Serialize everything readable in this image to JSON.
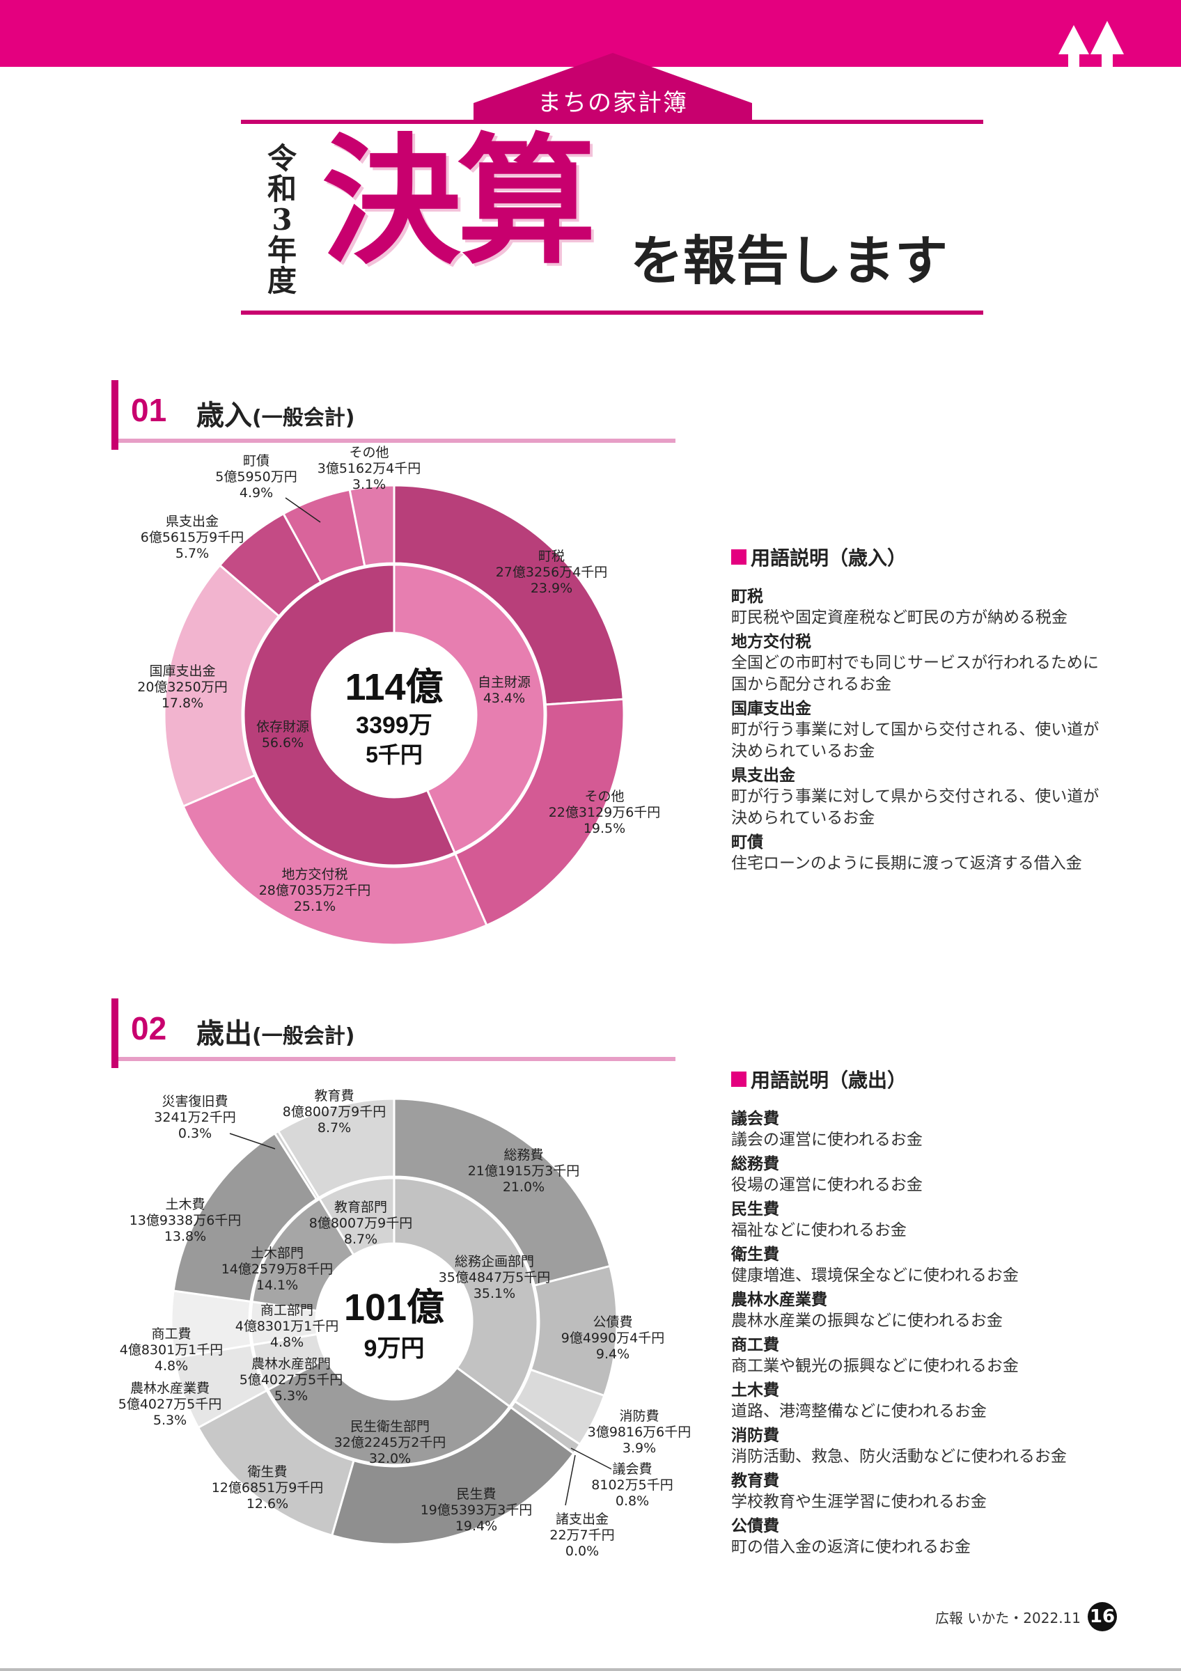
{
  "header": {
    "series_label": "まちの家計簿",
    "year": "令和3年度",
    "title_big": "決算",
    "title_sub": "を報告します"
  },
  "sections": [
    {
      "num": "01",
      "title": "歳入",
      "title_sub": "(一般会計)"
    },
    {
      "num": "02",
      "title": "歳出",
      "title_sub": "(一般会計)"
    }
  ],
  "colors": {
    "accent": "#e4007f",
    "title": "#c8006e"
  },
  "chart_data": [
    {
      "type": "pie",
      "variant": "donut",
      "center_total": [
        "114億",
        "3399万",
        "5千円"
      ],
      "inner_ring": [
        {
          "name": "自主財源",
          "percent": 43.4,
          "percent_label": "43.4%"
        },
        {
          "name": "依存財源",
          "percent": 56.6,
          "percent_label": "56.6%"
        }
      ],
      "outer_ring": [
        {
          "name": "町税",
          "amount": "27億3256万4千円",
          "percent": 23.9,
          "percent_label": "23.9%"
        },
        {
          "name": "その他",
          "amount": "22億3129万6千円",
          "percent": 19.5,
          "percent_label": "19.5%"
        },
        {
          "name": "地方交付税",
          "amount": "28億7035万2千円",
          "percent": 25.1,
          "percent_label": "25.1%"
        },
        {
          "name": "国庫支出金",
          "amount": "20億3250万円",
          "percent": 17.8,
          "percent_label": "17.8%"
        },
        {
          "name": "県支出金",
          "amount": "6億5615万9千円",
          "percent": 5.7,
          "percent_label": "5.7%"
        },
        {
          "name": "町債",
          "amount": "5億5950万円",
          "percent": 4.9,
          "percent_label": "4.9%"
        },
        {
          "name": "その他",
          "amount": "3億5162万4千円",
          "percent": 3.1,
          "percent_label": "3.1%"
        }
      ]
    },
    {
      "type": "pie",
      "variant": "donut",
      "center_total": [
        "101億",
        "9万円"
      ],
      "inner_ring": [
        {
          "name": "総務企画部門",
          "amount": "35億4847万5千円",
          "percent": 35.1,
          "percent_label": "35.1%"
        },
        {
          "name": "民生衛生部門",
          "amount": "32億2245万2千円",
          "percent": 32.0,
          "percent_label": "32.0%"
        },
        {
          "name": "農林水産部門",
          "amount": "5億4027万5千円",
          "percent": 5.3,
          "percent_label": "5.3%"
        },
        {
          "name": "商工部門",
          "amount": "4億8301万1千円",
          "percent": 4.8,
          "percent_label": "4.8%"
        },
        {
          "name": "土木部門",
          "amount": "14億2579万8千円",
          "percent": 14.1,
          "percent_label": "14.1%"
        },
        {
          "name": "教育部門",
          "amount": "8億8007万9千円",
          "percent": 8.7,
          "percent_label": "8.7%"
        }
      ],
      "outer_ring": [
        {
          "name": "総務費",
          "amount": "21億1915万3千円",
          "percent": 21.0,
          "percent_label": "21.0%"
        },
        {
          "name": "公債費",
          "amount": "9億4990万4千円",
          "percent": 9.4,
          "percent_label": "9.4%"
        },
        {
          "name": "消防費",
          "amount": "3億9816万6千円",
          "percent": 3.9,
          "percent_label": "3.9%"
        },
        {
          "name": "議会費",
          "amount": "8102万5千円",
          "percent": 0.8,
          "percent_label": "0.8%"
        },
        {
          "name": "諸支出金",
          "amount": "22万7千円",
          "percent": 0.0,
          "percent_label": "0.0%"
        },
        {
          "name": "民生費",
          "amount": "19億5393万3千円",
          "percent": 19.4,
          "percent_label": "19.4%"
        },
        {
          "name": "衛生費",
          "amount": "12億6851万9千円",
          "percent": 12.6,
          "percent_label": "12.6%"
        },
        {
          "name": "農林水産業費",
          "amount": "5億4027万5千円",
          "percent": 5.3,
          "percent_label": "5.3%"
        },
        {
          "name": "商工費",
          "amount": "4億8301万1千円",
          "percent": 4.8,
          "percent_label": "4.8%"
        },
        {
          "name": "土木費",
          "amount": "13億9338万6千円",
          "percent": 13.8,
          "percent_label": "13.8%"
        },
        {
          "name": "災害復旧費",
          "amount": "3241万2千円",
          "percent": 0.3,
          "percent_label": "0.3%"
        },
        {
          "name": "教育費",
          "amount": "8億8007万9千円",
          "percent": 8.7,
          "percent_label": "8.7%"
        }
      ]
    }
  ],
  "glossary": [
    {
      "heading": "用語説明（歳入）",
      "items": [
        {
          "term": "町税",
          "desc": [
            "町民税や固定資産税など町民の方が納める税金"
          ]
        },
        {
          "term": "地方交付税",
          "desc": [
            "全国どの市町村でも同じサービスが行われるために",
            "国から配分されるお金"
          ]
        },
        {
          "term": "国庫支出金",
          "desc": [
            "町が行う事業に対して国から交付される、使い道が",
            "決められているお金"
          ]
        },
        {
          "term": "県支出金",
          "desc": [
            "町が行う事業に対して県から交付される、使い道が",
            "決められているお金"
          ]
        },
        {
          "term": "町債",
          "desc": [
            "住宅ローンのように長期に渡って返済する借入金"
          ]
        }
      ]
    },
    {
      "heading": "用語説明（歳出）",
      "items": [
        {
          "term": "議会費",
          "desc": [
            "議会の運営に使われるお金"
          ]
        },
        {
          "term": "総務費",
          "desc": [
            "役場の運営に使われるお金"
          ]
        },
        {
          "term": "民生費",
          "desc": [
            "福祉などに使われるお金"
          ]
        },
        {
          "term": "衛生費",
          "desc": [
            "健康増進、環境保全などに使われるお金"
          ]
        },
        {
          "term": "農林水産業費",
          "desc": [
            "農林水産業の振興などに使われるお金"
          ]
        },
        {
          "term": "商工費",
          "desc": [
            "商工業や観光の振興などに使われるお金"
          ]
        },
        {
          "term": "土木費",
          "desc": [
            "道路、港湾整備などに使われるお金"
          ]
        },
        {
          "term": "消防費",
          "desc": [
            "消防活動、救急、防火活動などに使われるお金"
          ]
        },
        {
          "term": "教育費",
          "desc": [
            "学校教育や生涯学習に使われるお金"
          ]
        },
        {
          "term": "公債費",
          "desc": [
            "町の借入金の返済に使われるお金"
          ]
        }
      ]
    }
  ],
  "footer": {
    "publication": "広報 いかた・2022.11",
    "page": "16"
  }
}
